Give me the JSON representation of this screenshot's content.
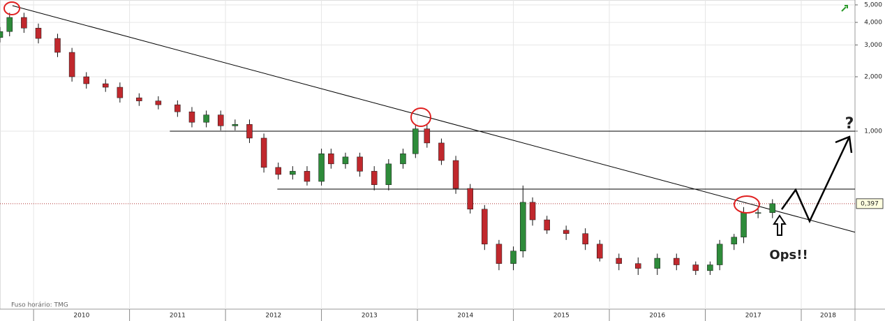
{
  "chart_data": {
    "type": "candlestick",
    "log_scale": true,
    "grid": true,
    "up_color": "#2e8b3a",
    "down_color": "#c0282d",
    "xlim": [
      2009.65,
      2018.56
    ],
    "xticks": [
      {
        "value": 2010,
        "label": "2010"
      },
      {
        "value": 2011,
        "label": "2011"
      },
      {
        "value": 2012,
        "label": "2012"
      },
      {
        "value": 2013,
        "label": "2013"
      },
      {
        "value": 2014,
        "label": "2014"
      },
      {
        "value": 2015,
        "label": "2015"
      },
      {
        "value": 2016,
        "label": "2016"
      },
      {
        "value": 2017,
        "label": "2017"
      },
      {
        "value": 2018,
        "label": "2018"
      }
    ],
    "ylim": [
      0.1035,
      5.32
    ],
    "yticks": [
      {
        "value": 1,
        "label": "1,000"
      },
      {
        "value": 2,
        "label": "2,000"
      },
      {
        "value": 3,
        "label": "3,000"
      },
      {
        "value": 4,
        "label": "4,000"
      },
      {
        "value": 5,
        "label": "5,000"
      }
    ],
    "x": [
      2009.65,
      2009.75,
      2009.9,
      2010.05,
      2010.25,
      2010.4,
      2010.55,
      2010.75,
      2010.9,
      2011.1,
      2011.3,
      2011.5,
      2011.65,
      2011.8,
      2011.95,
      2012.1,
      2012.25,
      2012.4,
      2012.55,
      2012.7,
      2012.85,
      2013.0,
      2013.1,
      2013.25,
      2013.4,
      2013.55,
      2013.7,
      2013.85,
      2013.98,
      2014.1,
      2014.25,
      2014.4,
      2014.55,
      2014.7,
      2014.85,
      2015.0,
      2015.1,
      2015.2,
      2015.35,
      2015.55,
      2015.75,
      2015.9,
      2016.1,
      2016.3,
      2016.5,
      2016.7,
      2016.9,
      2017.05,
      2017.15,
      2017.3,
      2017.4,
      2017.55,
      2017.7
    ],
    "open": [
      3.3,
      3.56,
      4.26,
      3.72,
      3.26,
      2.73,
      2.0,
      1.83,
      1.75,
      1.53,
      1.47,
      1.4,
      1.28,
      1.12,
      1.23,
      1.07,
      1.09,
      0.915,
      0.63,
      0.576,
      0.6,
      0.527,
      0.75,
      0.659,
      0.72,
      0.6,
      0.505,
      0.659,
      0.75,
      1.03,
      0.86,
      0.688,
      0.482,
      0.37,
      0.237,
      0.185,
      0.217,
      0.404,
      0.323,
      0.283,
      0.271,
      0.237,
      0.198,
      0.185,
      0.174,
      0.198,
      0.182,
      0.169,
      0.182,
      0.237,
      0.259,
      0.354,
      0.354
    ],
    "high": [
      3.77,
      4.52,
      4.52,
      3.94,
      3.46,
      2.89,
      2.12,
      1.94,
      1.86,
      1.62,
      1.56,
      1.48,
      1.36,
      1.3,
      1.3,
      1.16,
      1.16,
      0.97,
      0.67,
      0.64,
      0.64,
      0.8,
      0.8,
      0.76,
      0.76,
      0.64,
      0.7,
      0.8,
      1.09,
      1.09,
      0.91,
      0.73,
      0.51,
      0.39,
      0.25,
      0.23,
      0.5,
      0.43,
      0.34,
      0.3,
      0.29,
      0.25,
      0.21,
      0.2,
      0.21,
      0.21,
      0.19,
      0.19,
      0.25,
      0.27,
      0.38,
      0.38,
      0.42
    ],
    "low": [
      3.1,
      3.35,
      3.5,
      3.06,
      2.57,
      1.88,
      1.72,
      1.65,
      1.44,
      1.38,
      1.32,
      1.2,
      1.05,
      1.05,
      1.01,
      1.01,
      0.86,
      0.59,
      0.54,
      0.54,
      0.5,
      0.5,
      0.62,
      0.62,
      0.56,
      0.47,
      0.47,
      0.62,
      0.71,
      0.81,
      0.65,
      0.45,
      0.35,
      0.22,
      0.17,
      0.17,
      0.2,
      0.3,
      0.27,
      0.25,
      0.22,
      0.19,
      0.17,
      0.16,
      0.16,
      0.17,
      0.16,
      0.16,
      0.17,
      0.22,
      0.24,
      0.33,
      0.33
    ],
    "close": [
      3.56,
      4.26,
      3.72,
      3.26,
      2.73,
      2.0,
      1.83,
      1.75,
      1.53,
      1.47,
      1.4,
      1.28,
      1.12,
      1.23,
      1.07,
      1.09,
      0.915,
      0.63,
      0.576,
      0.6,
      0.527,
      0.75,
      0.659,
      0.72,
      0.6,
      0.505,
      0.659,
      0.75,
      1.03,
      0.86,
      0.688,
      0.482,
      0.37,
      0.237,
      0.185,
      0.217,
      0.404,
      0.323,
      0.283,
      0.271,
      0.237,
      0.198,
      0.185,
      0.174,
      0.198,
      0.182,
      0.169,
      0.182,
      0.237,
      0.259,
      0.354,
      0.354,
      0.397
    ],
    "last_price": {
      "value": 0.397,
      "label": "0,397"
    },
    "levels": [
      {
        "value": 1,
        "from": 2011.42
      },
      {
        "value": 0.478,
        "from": 2012.54
      }
    ],
    "trendline": {
      "x": [
        2009.78,
        2018.56
      ],
      "values": [
        4.95,
        0.276
      ]
    },
    "annotations": [
      "?",
      "Ops!!"
    ],
    "timezone_note": "Fuso horário: TMG"
  }
}
